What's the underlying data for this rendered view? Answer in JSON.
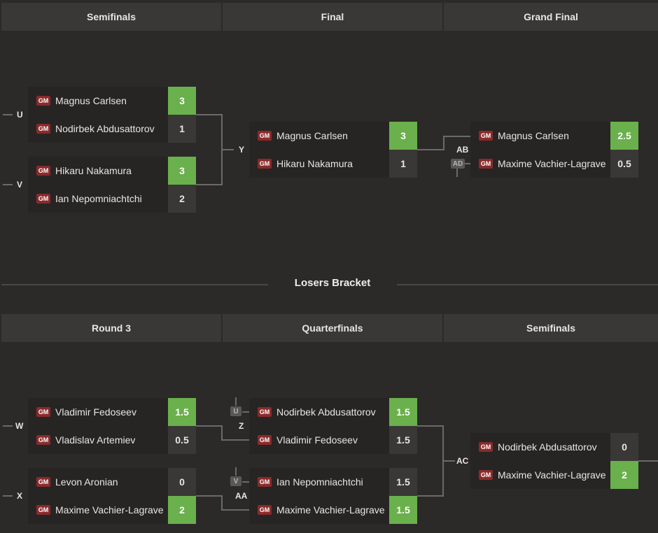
{
  "winners": {
    "rounds": [
      "Semifinals",
      "Final",
      "Grand Final"
    ],
    "matches": {
      "U": {
        "label": "U",
        "players": [
          {
            "title": "GM",
            "name": "Magnus Carlsen",
            "score": "3",
            "win": true
          },
          {
            "title": "GM",
            "name": "Nodirbek Abdusattorov",
            "score": "1",
            "win": false
          }
        ]
      },
      "V": {
        "label": "V",
        "players": [
          {
            "title": "GM",
            "name": "Hikaru Nakamura",
            "score": "3",
            "win": true
          },
          {
            "title": "GM",
            "name": "Ian Nepomniachtchi",
            "score": "2",
            "win": false
          }
        ]
      },
      "Y": {
        "label": "Y",
        "players": [
          {
            "title": "GM",
            "name": "Magnus Carlsen",
            "score": "3",
            "win": true
          },
          {
            "title": "GM",
            "name": "Hikaru Nakamura",
            "score": "1",
            "win": false
          }
        ]
      },
      "AB": {
        "label": "AB",
        "source": "AD",
        "players": [
          {
            "title": "GM",
            "name": "Magnus Carlsen",
            "score": "2.5",
            "win": true
          },
          {
            "title": "GM",
            "name": "Maxime Vachier-Lagrave",
            "score": "0.5",
            "win": false
          }
        ]
      }
    }
  },
  "losers": {
    "title": "Losers Bracket",
    "rounds": [
      "Round 3",
      "Quarterfinals",
      "Semifinals"
    ],
    "matches": {
      "W": {
        "label": "W",
        "players": [
          {
            "title": "GM",
            "name": "Vladimir Fedoseev",
            "score": "1.5",
            "win": true
          },
          {
            "title": "GM",
            "name": "Vladislav Artemiev",
            "score": "0.5",
            "win": false
          }
        ]
      },
      "X": {
        "label": "X",
        "players": [
          {
            "title": "GM",
            "name": "Levon Aronian",
            "score": "0",
            "win": false
          },
          {
            "title": "GM",
            "name": "Maxime Vachier-Lagrave",
            "score": "2",
            "win": true
          }
        ]
      },
      "Z": {
        "label": "Z",
        "source": "U",
        "players": [
          {
            "title": "GM",
            "name": "Nodirbek Abdusattorov",
            "score": "1.5",
            "win": true
          },
          {
            "title": "GM",
            "name": "Vladimir Fedoseev",
            "score": "1.5",
            "win": false
          }
        ]
      },
      "AA": {
        "label": "AA",
        "source": "V",
        "players": [
          {
            "title": "GM",
            "name": "Ian Nepomniachtchi",
            "score": "1.5",
            "win": false
          },
          {
            "title": "GM",
            "name": "Maxime Vachier-Lagrave",
            "score": "1.5",
            "win": true
          }
        ]
      },
      "AC": {
        "label": "AC",
        "players": [
          {
            "title": "GM",
            "name": "Nodirbek Abdusattorov",
            "score": "0",
            "win": false
          },
          {
            "title": "GM",
            "name": "Maxime Vachier-Lagrave",
            "score": "2",
            "win": true
          }
        ]
      }
    }
  }
}
